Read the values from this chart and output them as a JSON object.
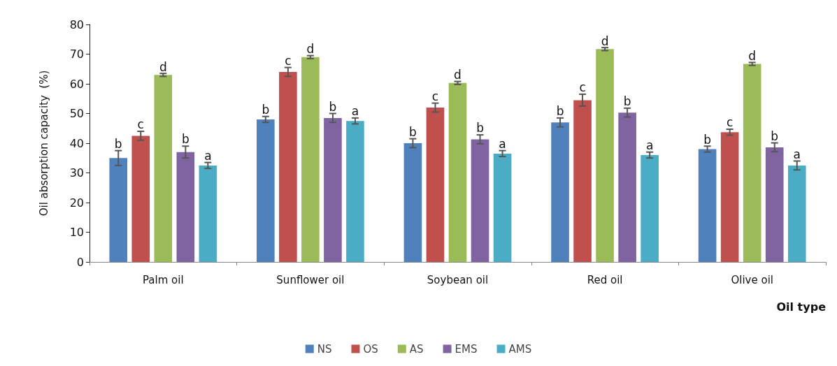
{
  "chart_data": {
    "type": "bar",
    "xlabel": "Oil type",
    "ylabel": "Oil absorption capacity  (%)",
    "categories": [
      "Palm oil",
      "Sunflower oil",
      "Soybean oil",
      "Red oil",
      "Olive oil"
    ],
    "ylim": [
      0,
      80
    ],
    "yticks": [
      0,
      10,
      20,
      30,
      40,
      50,
      60,
      70,
      80
    ],
    "grid": false,
    "legend": "bottom",
    "series": [
      {
        "name": "NS",
        "color": "#4f81bd",
        "values": [
          35,
          48,
          40,
          47,
          38
        ],
        "errors": [
          2.5,
          1,
          1.5,
          1.5,
          1
        ],
        "value_labels": [
          "b",
          "b",
          "b",
          "b",
          "b"
        ]
      },
      {
        "name": "OS",
        "color": "#c0504d",
        "values": [
          42.5,
          64,
          52,
          54.5,
          43.7
        ],
        "errors": [
          1.5,
          1.5,
          1.5,
          2,
          1
        ],
        "value_labels": [
          "c",
          "c",
          "c",
          "c",
          "c"
        ]
      },
      {
        "name": "AS",
        "color": "#9bbb59",
        "values": [
          63,
          69,
          60.3,
          71.7,
          66.7
        ],
        "errors": [
          0.5,
          0.5,
          0.5,
          0.5,
          0.5
        ],
        "value_labels": [
          "d",
          "d",
          "d",
          "d",
          "d"
        ]
      },
      {
        "name": "EMS",
        "color": "#8064a2",
        "values": [
          37,
          48.5,
          41.3,
          50.3,
          38.6
        ],
        "errors": [
          2,
          1.5,
          1.5,
          1.5,
          1.5
        ],
        "value_labels": [
          "b",
          "b",
          "b",
          "b",
          "b"
        ]
      },
      {
        "name": "AMS",
        "color": "#4bacc6",
        "values": [
          32.5,
          47.5,
          36.5,
          36,
          32.5
        ],
        "errors": [
          1,
          1,
          1,
          1,
          1.5
        ],
        "value_labels": [
          "a",
          "a",
          "a",
          "a",
          "a"
        ]
      }
    ]
  }
}
